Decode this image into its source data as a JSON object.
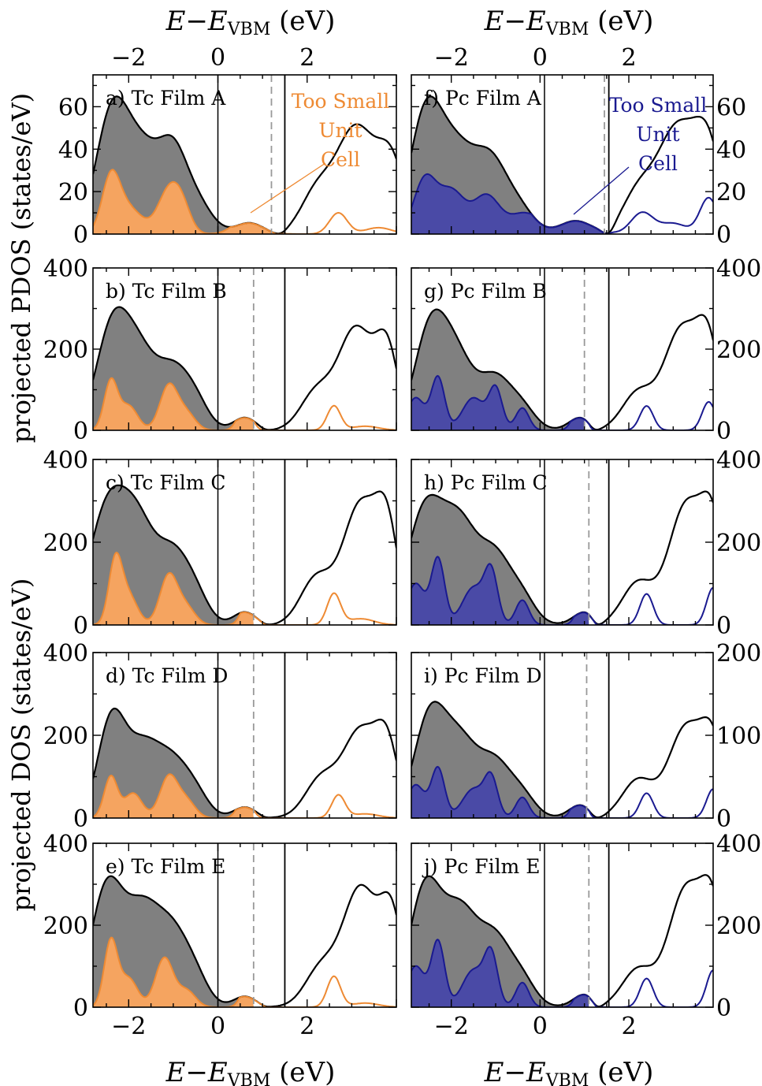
{
  "figure": {
    "top_xlabel": "E−E",
    "xlabel_sub": "VBM",
    "xlabel_unit": " (eV)",
    "bottom_xlabel": "E−E",
    "ylabel_upper": "projected PDOS (states/eV)",
    "ylabel_lower": "projected DOS (states/eV)",
    "annotation_left": [
      "Too Small",
      "Unit",
      "Cell"
    ],
    "annotation_right": [
      "Too Small",
      "Unit",
      "Cell"
    ]
  },
  "colors": {
    "tc_fill": "#f5a460",
    "tc_line": "#ee8a33",
    "pc_fill": "#4a4aa6",
    "pc_line": "#1a1a90",
    "total_fill": "#808080",
    "total_line": "#000000",
    "dashed": "#999999"
  },
  "chart_data": [
    {
      "id": "a",
      "type": "area",
      "label": "a) Tc Film A",
      "material": "Tc",
      "xlim": [
        -2.8,
        4.0
      ],
      "ylim": [
        0,
        75
      ],
      "yticks": [
        0,
        20,
        40,
        60
      ],
      "xticks": [
        -2,
        0,
        2
      ],
      "vbm": 0,
      "cbm": 1.5,
      "dashed": 1.2,
      "gap_scale": 0.04,
      "total_peaks": [
        [
          -2.4,
          50,
          0.35
        ],
        [
          -1.7,
          40,
          0.45
        ],
        [
          -1.0,
          28,
          0.3
        ],
        [
          -0.5,
          15,
          0.35
        ],
        [
          0.7,
          5,
          0.3
        ],
        [
          2.2,
          18,
          0.35
        ],
        [
          3.1,
          50,
          0.45
        ],
        [
          3.9,
          30,
          0.3
        ]
      ],
      "proj_peaks": [
        [
          -2.4,
          25,
          0.2
        ],
        [
          -2.0,
          12,
          0.3
        ],
        [
          -1.1,
          20,
          0.25
        ],
        [
          -0.8,
          10,
          0.2
        ],
        [
          0.7,
          9,
          0.3
        ],
        [
          2.7,
          10,
          0.2
        ],
        [
          3.6,
          3,
          0.3
        ]
      ]
    },
    {
      "id": "b",
      "type": "area",
      "label": "b) Tc Film B",
      "material": "Tc",
      "xlim": [
        -2.8,
        4.0
      ],
      "ylim": [
        0,
        400
      ],
      "yticks": [
        0,
        200,
        400
      ],
      "xticks": [
        -2,
        0,
        2
      ],
      "vbm": 0,
      "cbm": 1.5,
      "dashed": 0.8,
      "gap_scale": 0.06,
      "total_peaks": [
        [
          -2.4,
          220,
          0.35
        ],
        [
          -1.8,
          190,
          0.4
        ],
        [
          -1.0,
          130,
          0.35
        ],
        [
          -0.5,
          60,
          0.3
        ],
        [
          0.6,
          30,
          0.25
        ],
        [
          2.2,
          90,
          0.35
        ],
        [
          3.1,
          250,
          0.4
        ],
        [
          3.8,
          180,
          0.25
        ]
      ],
      "proj_peaks": [
        [
          -2.4,
          120,
          0.15
        ],
        [
          -2.0,
          60,
          0.2
        ],
        [
          -1.1,
          110,
          0.2
        ],
        [
          -0.7,
          40,
          0.2
        ],
        [
          0.6,
          60,
          0.15
        ],
        [
          2.6,
          60,
          0.15
        ],
        [
          3.3,
          10,
          0.3
        ]
      ]
    },
    {
      "id": "c",
      "type": "area",
      "label": "c) Tc Film  C",
      "material": "Tc",
      "xlim": [
        -2.8,
        4.0
      ],
      "ylim": [
        0,
        400
      ],
      "yticks": [
        0,
        200,
        400
      ],
      "xticks": [
        -2,
        0,
        2
      ],
      "vbm": 0,
      "cbm": 1.5,
      "dashed": 0.8,
      "gap_scale": 0.06,
      "total_peaks": [
        [
          -2.5,
          260,
          0.4
        ],
        [
          -1.8,
          230,
          0.4
        ],
        [
          -1.0,
          150,
          0.35
        ],
        [
          -0.5,
          60,
          0.3
        ],
        [
          0.6,
          30,
          0.25
        ],
        [
          2.2,
          110,
          0.35
        ],
        [
          3.2,
          290,
          0.4
        ],
        [
          3.8,
          200,
          0.25
        ]
      ],
      "proj_peaks": [
        [
          -2.3,
          150,
          0.15
        ],
        [
          -2.0,
          70,
          0.2
        ],
        [
          -1.1,
          120,
          0.2
        ],
        [
          -0.7,
          40,
          0.2
        ],
        [
          0.7,
          70,
          0.15
        ],
        [
          2.6,
          75,
          0.15
        ],
        [
          3.2,
          15,
          0.3
        ]
      ]
    },
    {
      "id": "d",
      "type": "area",
      "label": "d) Tc Film D",
      "material": "Tc",
      "xlim": [
        -2.8,
        4.0
      ],
      "ylim": [
        0,
        400
      ],
      "yticks": [
        0,
        200,
        400
      ],
      "xticks": [
        -2,
        0,
        2
      ],
      "vbm": 0,
      "cbm": 1.5,
      "dashed": 0.8,
      "gap_scale": 0.06,
      "total_peaks": [
        [
          -2.4,
          220,
          0.3
        ],
        [
          -1.7,
          170,
          0.4
        ],
        [
          -1.0,
          110,
          0.35
        ],
        [
          -0.5,
          50,
          0.3
        ],
        [
          0.6,
          25,
          0.25
        ],
        [
          2.3,
          90,
          0.35
        ],
        [
          3.2,
          210,
          0.4
        ],
        [
          3.8,
          150,
          0.25
        ]
      ],
      "proj_peaks": [
        [
          -2.4,
          100,
          0.15
        ],
        [
          -1.9,
          60,
          0.2
        ],
        [
          -1.1,
          100,
          0.2
        ],
        [
          -0.7,
          40,
          0.2
        ],
        [
          0.6,
          50,
          0.15
        ],
        [
          2.7,
          55,
          0.15
        ],
        [
          3.3,
          10,
          0.3
        ]
      ]
    },
    {
      "id": "e",
      "type": "area",
      "label": "e) Tc Film E",
      "material": "Tc",
      "xlim": [
        -2.8,
        4.0
      ],
      "ylim": [
        0,
        400
      ],
      "yticks": [
        0,
        200,
        400
      ],
      "xticks": [
        -2,
        0,
        2
      ],
      "vbm": 0,
      "cbm": 1.5,
      "dashed": 0.8,
      "gap_scale": 0.06,
      "total_peaks": [
        [
          -2.5,
          280,
          0.35
        ],
        [
          -1.7,
          230,
          0.4
        ],
        [
          -1.0,
          150,
          0.35
        ],
        [
          -0.5,
          60,
          0.3
        ],
        [
          0.6,
          25,
          0.25
        ],
        [
          2.3,
          90,
          0.35
        ],
        [
          3.2,
          290,
          0.4
        ],
        [
          3.9,
          200,
          0.25
        ]
      ],
      "proj_peaks": [
        [
          -2.4,
          160,
          0.15
        ],
        [
          -2.0,
          70,
          0.2
        ],
        [
          -1.2,
          120,
          0.2
        ],
        [
          -0.7,
          40,
          0.2
        ],
        [
          0.7,
          70,
          0.15
        ],
        [
          2.6,
          75,
          0.15
        ],
        [
          3.3,
          10,
          0.3
        ]
      ]
    },
    {
      "id": "f",
      "type": "area",
      "label": "f) Pc Film A",
      "material": "Pc",
      "xlim": [
        -2.9,
        3.9
      ],
      "ylim": [
        0,
        75
      ],
      "yticks": [
        0,
        20,
        40,
        60
      ],
      "xticks": [
        -2,
        0,
        2
      ],
      "vbm": 0.1,
      "cbm": 1.55,
      "dashed": 1.45,
      "gap_scale": 0.04,
      "total_peaks": [
        [
          -2.6,
          50,
          0.35
        ],
        [
          -1.9,
          40,
          0.45
        ],
        [
          -1.1,
          28,
          0.35
        ],
        [
          -0.5,
          12,
          0.35
        ],
        [
          0.8,
          6,
          0.35
        ],
        [
          2.2,
          18,
          0.35
        ],
        [
          3.1,
          50,
          0.45
        ],
        [
          3.8,
          35,
          0.3
        ]
      ],
      "proj_peaks": [
        [
          -2.6,
          25,
          0.25
        ],
        [
          -2.0,
          20,
          0.3
        ],
        [
          -1.2,
          18,
          0.3
        ],
        [
          -0.4,
          8,
          0.3
        ],
        [
          0.5,
          8,
          0.5
        ],
        [
          1.2,
          8,
          0.2
        ],
        [
          2.3,
          10,
          0.25
        ],
        [
          3.0,
          5,
          0.3
        ],
        [
          3.8,
          17,
          0.2
        ]
      ]
    },
    {
      "id": "g",
      "type": "area",
      "label": "g) Pc Film B",
      "material": "Pc",
      "xlim": [
        -2.9,
        3.9
      ],
      "ylim": [
        0,
        400
      ],
      "yticks": [
        0,
        200,
        400
      ],
      "xticks": [
        -2,
        0,
        2
      ],
      "vbm": 0.1,
      "cbm": 1.55,
      "dashed": 1.0,
      "gap_scale": 0.06,
      "total_peaks": [
        [
          -2.5,
          220,
          0.35
        ],
        [
          -1.9,
          180,
          0.4
        ],
        [
          -1.0,
          120,
          0.35
        ],
        [
          -0.4,
          50,
          0.3
        ],
        [
          0.9,
          30,
          0.25
        ],
        [
          2.2,
          90,
          0.35
        ],
        [
          3.2,
          250,
          0.4
        ],
        [
          3.8,
          180,
          0.25
        ]
      ],
      "proj_peaks": [
        [
          -2.8,
          80,
          0.2
        ],
        [
          -2.3,
          130,
          0.15
        ],
        [
          -1.5,
          80,
          0.25
        ],
        [
          -1.0,
          100,
          0.15
        ],
        [
          -0.4,
          55,
          0.15
        ],
        [
          0.9,
          60,
          0.15
        ],
        [
          2.4,
          60,
          0.15
        ],
        [
          3.8,
          70,
          0.15
        ]
      ]
    },
    {
      "id": "h",
      "type": "area",
      "label": "h) Pc Film C",
      "material": "Pc",
      "xlim": [
        -2.9,
        3.9
      ],
      "ylim": [
        0,
        400
      ],
      "yticks": [
        0,
        200,
        400
      ],
      "xticks": [
        -2,
        0,
        2
      ],
      "vbm": 0.1,
      "cbm": 1.55,
      "dashed": 1.1,
      "gap_scale": 0.06,
      "total_peaks": [
        [
          -2.6,
          270,
          0.4
        ],
        [
          -1.8,
          230,
          0.4
        ],
        [
          -1.0,
          150,
          0.35
        ],
        [
          -0.4,
          60,
          0.3
        ],
        [
          1.0,
          30,
          0.25
        ],
        [
          2.2,
          100,
          0.35
        ],
        [
          3.3,
          290,
          0.4
        ],
        [
          3.9,
          200,
          0.25
        ]
      ],
      "proj_peaks": [
        [
          -2.8,
          100,
          0.2
        ],
        [
          -2.3,
          160,
          0.15
        ],
        [
          -1.5,
          90,
          0.25
        ],
        [
          -1.1,
          120,
          0.15
        ],
        [
          -0.4,
          60,
          0.15
        ],
        [
          1.0,
          70,
          0.15
        ],
        [
          2.4,
          75,
          0.15
        ],
        [
          3.9,
          90,
          0.15
        ]
      ]
    },
    {
      "id": "i",
      "type": "area",
      "label": "i) Pc Film D",
      "material": "Pc",
      "xlim": [
        -2.9,
        3.9
      ],
      "ylim": [
        0,
        200
      ],
      "yticks": [
        0,
        100,
        200
      ],
      "xticks": [
        -2,
        0,
        2
      ],
      "vbm": 0.1,
      "cbm": 1.55,
      "dashed": 1.05,
      "gap_scale": 0.06,
      "total_peaks": [
        [
          -2.5,
          115,
          0.35
        ],
        [
          -1.8,
          90,
          0.4
        ],
        [
          -1.0,
          60,
          0.35
        ],
        [
          -0.4,
          25,
          0.3
        ],
        [
          0.9,
          15,
          0.25
        ],
        [
          2.2,
          45,
          0.35
        ],
        [
          3.3,
          110,
          0.4
        ],
        [
          3.9,
          75,
          0.25
        ]
      ],
      "proj_peaks": [
        [
          -2.8,
          40,
          0.2
        ],
        [
          -2.3,
          60,
          0.15
        ],
        [
          -1.5,
          35,
          0.25
        ],
        [
          -1.1,
          45,
          0.15
        ],
        [
          -0.4,
          25,
          0.15
        ],
        [
          0.9,
          30,
          0.15
        ],
        [
          2.4,
          30,
          0.15
        ],
        [
          3.9,
          35,
          0.15
        ]
      ]
    },
    {
      "id": "j",
      "type": "area",
      "label": "j) Pc Film E",
      "material": "Pc",
      "xlim": [
        -2.9,
        3.9
      ],
      "ylim": [
        0,
        400
      ],
      "yticks": [
        0,
        200,
        400
      ],
      "xticks": [
        -2,
        0,
        2
      ],
      "vbm": 0.1,
      "cbm": 1.55,
      "dashed": 1.1,
      "gap_scale": 0.06,
      "total_peaks": [
        [
          -2.6,
          280,
          0.35
        ],
        [
          -1.8,
          230,
          0.4
        ],
        [
          -1.0,
          150,
          0.35
        ],
        [
          -0.4,
          60,
          0.3
        ],
        [
          1.0,
          30,
          0.25
        ],
        [
          2.2,
          90,
          0.35
        ],
        [
          3.3,
          290,
          0.4
        ],
        [
          3.9,
          200,
          0.25
        ]
      ],
      "proj_peaks": [
        [
          -2.8,
          100,
          0.2
        ],
        [
          -2.3,
          160,
          0.15
        ],
        [
          -1.5,
          90,
          0.25
        ],
        [
          -1.1,
          120,
          0.15
        ],
        [
          -0.4,
          60,
          0.15
        ],
        [
          1.0,
          70,
          0.15
        ],
        [
          2.4,
          70,
          0.15
        ],
        [
          3.9,
          90,
          0.15
        ]
      ]
    }
  ]
}
